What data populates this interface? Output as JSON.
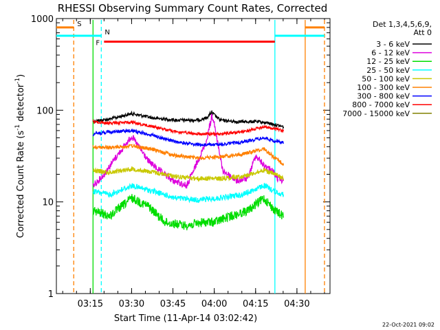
{
  "chart_data": {
    "type": "line",
    "title": "RHESSI Observing Summary Count Rates, Corrected",
    "xlabel": "Start Time (11-Apr-14 03:02:42)",
    "ylabel_main": "Corrected Count Rate (s",
    "ylabel_sup1": "-1",
    "ylabel_mid": " detector",
    "ylabel_sup2": "-1",
    "ylabel_end": ")",
    "y_scale": "log",
    "ylim": [
      1,
      1000
    ],
    "xlim": [
      "03:02:42",
      "04:42:00"
    ],
    "x_ticks": [
      "03:15",
      "03:30",
      "03:45",
      "04:00",
      "04:15",
      "04:30"
    ],
    "y_ticks": [
      "1",
      "10",
      "100",
      "1000"
    ],
    "legend_header_1": "Det 1,3,4,5,6,9,",
    "legend_header_2": "Att 0",
    "legend_position": "top-right",
    "footer_date": "22-Oct-2021 09:02",
    "series": [
      {
        "name": "3 - 6 keV",
        "color": "#000000",
        "x": [
          "03:16",
          "03:22",
          "03:30",
          "03:38",
          "03:46",
          "03:54",
          "03:57",
          "03:59",
          "04:02",
          "04:08",
          "04:16",
          "04:20",
          "04:25"
        ],
        "values": [
          76,
          80,
          92,
          82,
          78,
          78,
          82,
          95,
          78,
          75,
          75,
          72,
          66
        ]
      },
      {
        "name": "6 - 12 keV",
        "color": "#dd00dd",
        "x": [
          "03:16",
          "03:20",
          "03:24",
          "03:30",
          "03:36",
          "03:40",
          "03:45",
          "03:50",
          "03:53",
          "03:57",
          "03:59",
          "04:00",
          "04:03",
          "04:08",
          "04:12",
          "04:15",
          "04:18",
          "04:21",
          "04:23",
          "04:25"
        ],
        "values": [
          15,
          20,
          30,
          52,
          28,
          22,
          17,
          15,
          24,
          45,
          85,
          70,
          22,
          17,
          18,
          32,
          25,
          22,
          18,
          17
        ]
      },
      {
        "name": "12 - 25 keV",
        "color": "#00dd00",
        "x": [
          "03:16",
          "03:22",
          "03:30",
          "03:36",
          "03:42",
          "03:50",
          "03:56",
          "04:00",
          "04:06",
          "04:12",
          "04:18",
          "04:22",
          "04:25"
        ],
        "values": [
          8,
          7,
          11,
          9,
          6,
          5.5,
          6,
          6,
          7,
          8,
          11,
          8,
          7
        ]
      },
      {
        "name": "25 - 50 keV",
        "color": "#00ffff",
        "x": [
          "03:16",
          "03:22",
          "03:30",
          "03:38",
          "03:46",
          "03:54",
          "04:02",
          "04:10",
          "04:18",
          "04:22",
          "04:25"
        ],
        "values": [
          13,
          12,
          15,
          13,
          11,
          10.5,
          11,
          12,
          15,
          13,
          12
        ]
      },
      {
        "name": "50 - 100 keV",
        "color": "#c8c800",
        "x": [
          "03:16",
          "03:22",
          "03:30",
          "03:38",
          "03:46",
          "03:54",
          "04:02",
          "04:10",
          "04:18",
          "04:22",
          "04:25"
        ],
        "values": [
          22,
          21,
          23,
          21,
          19,
          18,
          18,
          19,
          22,
          20,
          18
        ]
      },
      {
        "name": "100 - 300 keV",
        "color": "#ff8000",
        "x": [
          "03:16",
          "03:22",
          "03:30",
          "03:38",
          "03:46",
          "03:54",
          "04:02",
          "04:10",
          "04:18",
          "04:22",
          "04:25"
        ],
        "values": [
          40,
          39,
          41,
          37,
          32,
          30,
          31,
          33,
          38,
          30,
          26
        ]
      },
      {
        "name": "300 - 800 keV",
        "color": "#0000ff",
        "x": [
          "03:16",
          "03:22",
          "03:30",
          "03:38",
          "03:46",
          "03:54",
          "04:02",
          "04:10",
          "04:18",
          "04:22",
          "04:25"
        ],
        "values": [
          55,
          58,
          60,
          53,
          45,
          42,
          42,
          45,
          50,
          46,
          44
        ]
      },
      {
        "name": "800 - 7000 keV",
        "color": "#ff0000",
        "x": [
          "03:16",
          "03:22",
          "03:30",
          "03:38",
          "03:46",
          "03:54",
          "04:02",
          "04:10",
          "04:18",
          "04:22",
          "04:25"
        ],
        "values": [
          75,
          72,
          74,
          66,
          58,
          55,
          55,
          58,
          66,
          63,
          60
        ]
      },
      {
        "name": "7000 - 15000 keV",
        "color": "#808000",
        "x": [],
        "values": []
      }
    ],
    "flags": [
      {
        "label": "S",
        "color": "#ff8000",
        "from": "03:02:42",
        "to": "03:09",
        "level": 800
      },
      {
        "label": "N",
        "color": "#00ffff",
        "from": "03:02:42",
        "to": "03:19",
        "level": 650
      },
      {
        "label": "F",
        "color": "#ff0000",
        "from": "03:20",
        "to": "04:22",
        "level": 560
      },
      {
        "label": "",
        "color": "#00ffff",
        "from": "04:22",
        "to": "04:40",
        "level": 650
      },
      {
        "label": "",
        "color": "#ff8000",
        "from": "04:33",
        "to": "04:40",
        "level": 800
      }
    ],
    "vlines": [
      {
        "at": "03:09",
        "color": "#ff8000",
        "style": "dashed"
      },
      {
        "at": "03:16",
        "color": "#00dd00",
        "style": "solid"
      },
      {
        "at": "03:19",
        "color": "#00ffff",
        "style": "dashed"
      },
      {
        "at": "04:22",
        "color": "#00ffff",
        "style": "solid"
      },
      {
        "at": "04:33",
        "color": "#ff8000",
        "style": "solid"
      },
      {
        "at": "04:40",
        "color": "#ff8000",
        "style": "dashed"
      }
    ]
  }
}
